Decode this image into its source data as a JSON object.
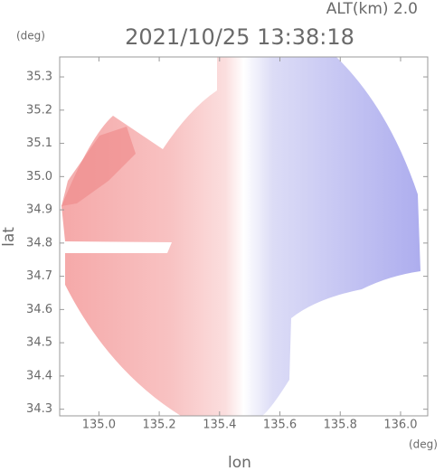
{
  "chart_data": {
    "type": "map",
    "title": "2021/10/25 13:38:18",
    "subtitle": "ALT(km) 2.0",
    "x_label": "lon",
    "y_label": "lat",
    "x_unit": "(deg)",
    "y_unit": "(deg)",
    "xlim": [
      134.87,
      136.09
    ],
    "ylim": [
      34.28,
      35.36
    ],
    "xticks": [
      {
        "value": 135,
        "label": "135.0"
      },
      135.2,
      135.4,
      135.6,
      135.8,
      {
        "value": 136,
        "label": "136.0"
      }
    ],
    "yticks": [
      34.3,
      34.4,
      34.5,
      34.6,
      34.7,
      34.8,
      34.9,
      {
        "value": 35,
        "label": "35.0"
      },
      35.1,
      35.2,
      35.3
    ]
  }
}
